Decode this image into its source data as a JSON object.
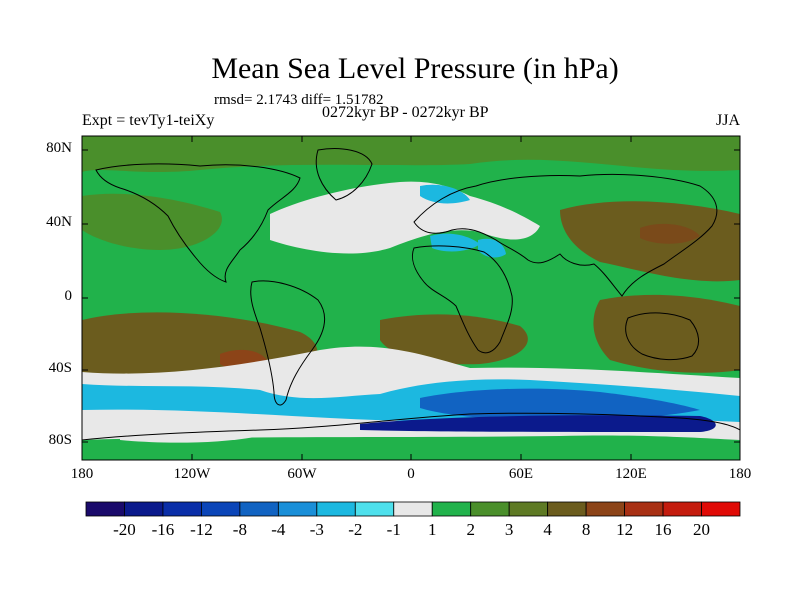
{
  "title": "Mean Sea Level Pressure (in hPa)",
  "stats": "rmsd= 2.1743 diff= 1.51782",
  "period": "0272kyr BP - 0272kyr BP",
  "experiment": "Expt = tevTy1-teiXy",
  "season": "JJA",
  "axes": {
    "lat_labels": [
      "80N",
      "40N",
      "0",
      "40S",
      "80S"
    ],
    "lon_labels": [
      "180",
      "120W",
      "60W",
      "0",
      "60E",
      "120E",
      "180"
    ]
  },
  "colorbar": {
    "labels": [
      "-20",
      "-16",
      "-12",
      "-8",
      "-4",
      "-3",
      "-2",
      "-1",
      "1",
      "2",
      "3",
      "4",
      "8",
      "12",
      "16",
      "20"
    ],
    "colors": [
      "#1a0a6b",
      "#0b1a8c",
      "#0a2ea8",
      "#0b45b8",
      "#1163c2",
      "#1a8fd8",
      "#1cb8e0",
      "#4ee0ec",
      "#e8e8e8",
      "#21b24b",
      "#4a8f2b",
      "#5e7a24",
      "#6b5c1e",
      "#8c4418",
      "#a83014",
      "#c41c0e",
      "#e00a06"
    ]
  },
  "map_colors": {
    "ocean_base": "#21b24b",
    "land_base": "#4a8f2b",
    "warm_high": "#6b5c1e",
    "neutral": "#e8e8e8",
    "low_light": "#1cb8e0",
    "low_mid": "#1163c2",
    "low_deep": "#0b1a8c",
    "coast": "#000000"
  }
}
